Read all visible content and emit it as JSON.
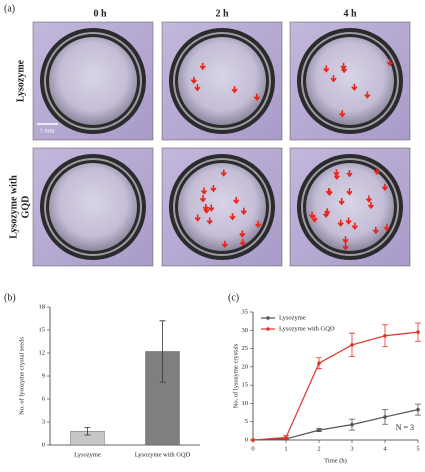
{
  "panel_a": {
    "label": "(a)",
    "columns": [
      "0 h",
      "2 h",
      "4 h"
    ],
    "rows": [
      [
        "Lysozyme"
      ],
      [
        "Lysozyme with",
        "GQD"
      ]
    ],
    "scale_bar": "1 mm"
  },
  "chart_data": [
    {
      "type": "bar",
      "panel_label": "(b)",
      "ylabel": "No. of lysozyme crystal seeds",
      "categories": [
        "Lysozyme",
        "Lysozyme with GQD"
      ],
      "values": [
        1.8,
        12.2
      ],
      "errors": [
        0.5,
        4.0
      ],
      "colors": [
        "#c6c6c6",
        "#7f7f7f"
      ],
      "ylim": [
        0,
        18
      ],
      "yticks": [
        0,
        3,
        6,
        9,
        12,
        15,
        18
      ]
    },
    {
      "type": "line",
      "panel_label": "(c)",
      "xlabel": "Time (h)",
      "ylabel": "No. of lysozyme crystals",
      "x": [
        0,
        1,
        2,
        3,
        4,
        5
      ],
      "xlim": [
        0,
        5
      ],
      "xticks": [
        0,
        1,
        2,
        3,
        4,
        5
      ],
      "ylim": [
        0,
        35
      ],
      "yticks": [
        0,
        5,
        10,
        15,
        20,
        25,
        30,
        35
      ],
      "legend": "upper left",
      "annotation": "N = 3",
      "series": [
        {
          "name": "Lysozyme",
          "color": "#555555",
          "values": [
            0,
            0.3,
            2.7,
            4.2,
            6.3,
            8.3
          ],
          "errors": [
            0,
            0.3,
            0.4,
            1.5,
            2,
            1.5
          ]
        },
        {
          "name": "Lysozyme with GQD",
          "color": "#e0342b",
          "values": [
            0,
            0.7,
            21,
            26,
            28.5,
            29.5
          ],
          "errors": [
            0,
            0.5,
            1.5,
            3.2,
            3,
            2.5
          ]
        }
      ]
    }
  ]
}
